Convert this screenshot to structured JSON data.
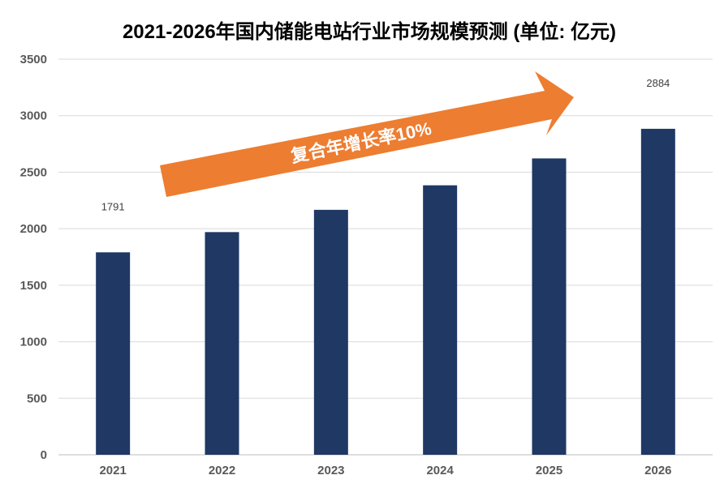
{
  "chart_data": {
    "type": "bar",
    "title": "2021-2026年国内储能电站行业市场规模预测 (单位: 亿元)",
    "xlabel": "",
    "ylabel": "",
    "categories": [
      "2021",
      "2022",
      "2023",
      "2024",
      "2025",
      "2026"
    ],
    "values": [
      1791,
      1970,
      2167,
      2384,
      2622,
      2884
    ],
    "data_labels": [
      {
        "index": 0,
        "text": "1791"
      },
      {
        "index": 5,
        "text": "2884"
      }
    ],
    "ylim": [
      0,
      3500
    ],
    "yticks": [
      0,
      500,
      1000,
      1500,
      2000,
      2500,
      3000,
      3500
    ],
    "grid": true,
    "legend": "none",
    "bar_color": "#1F3864",
    "annotation": {
      "text": "复合年增长率10%",
      "color": "#ED7D31"
    }
  }
}
